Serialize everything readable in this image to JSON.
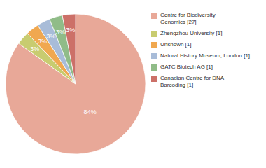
{
  "chart_data": {
    "type": "pie",
    "categories": [
      "Centre for Biodiversity\nGenomics [27]",
      "Zhengzhou University [1]",
      "Unknown [1]",
      "Natural History Museum, London [1]",
      "GATC Biotech AG [1]",
      "Canadian Centre for DNA\nBarcoding [1]"
    ],
    "values": [
      84,
      3,
      3,
      3,
      3,
      3
    ],
    "value_labels": [
      "84%",
      "3%",
      "3%",
      "3%",
      "3%",
      "3%"
    ],
    "colors": [
      "#e8a898",
      "#c8cc70",
      "#f0a850",
      "#a8bcd8",
      "#90bc88",
      "#cc7068"
    ],
    "data_labels": true,
    "legend": "right"
  }
}
